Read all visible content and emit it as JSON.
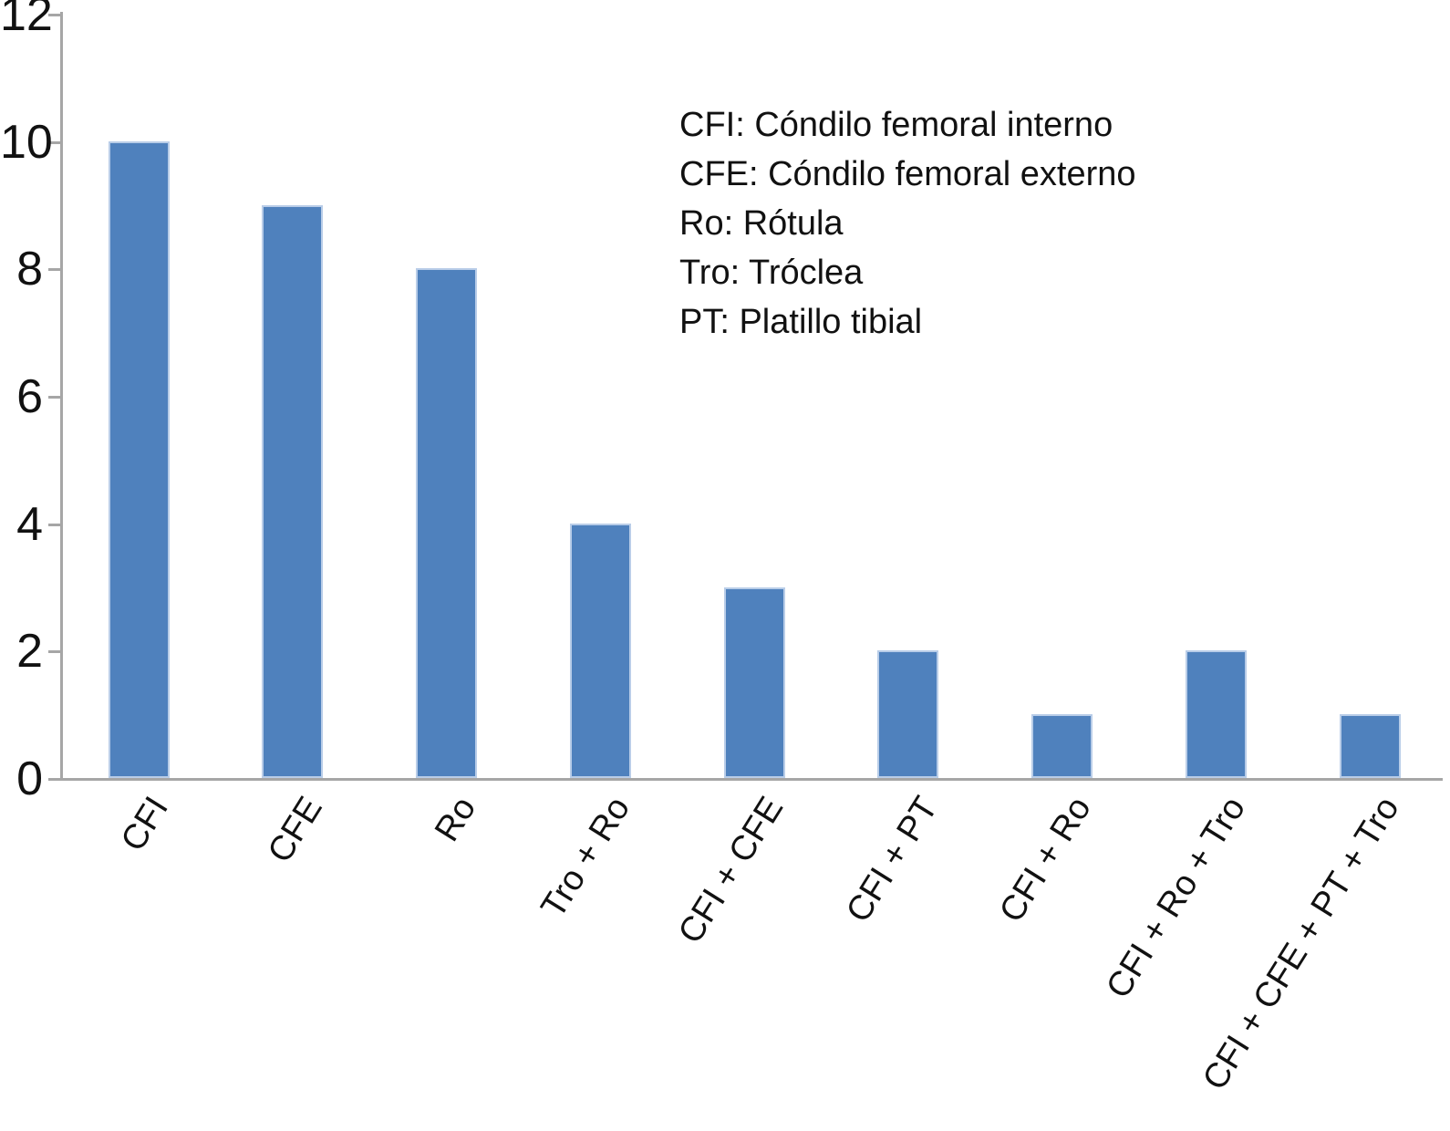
{
  "figure": {
    "background_color": "#ffffff",
    "text_color": "#111111"
  },
  "chart_data": {
    "type": "bar",
    "title": "",
    "xlabel": "",
    "ylabel": "",
    "categories": [
      "CFI",
      "CFE",
      "Ro",
      "Tro + Ro",
      "CFI + CFE",
      "CFI + PT",
      "CFI + Ro",
      "CFI + Ro + Tro",
      "CFI + CFE + PT + Tro"
    ],
    "values": [
      10,
      9,
      8,
      4,
      3,
      2,
      1,
      2,
      1
    ],
    "ylim": [
      0,
      12
    ],
    "yticks": [
      0,
      2,
      4,
      6,
      8,
      10,
      12
    ],
    "grid": false,
    "x_tick_rotation_deg": -58,
    "bar_color": "#4f81bd",
    "bar_border_color": "#b9cde8",
    "axis_color": "#a6a6a6",
    "legend_position": "upper-right-inside",
    "annotations": [
      "CFI: Cóndilo femoral interno",
      "CFE: Cóndilo femoral externo",
      "Ro: Rótula",
      "Tro: Tróclea",
      "PT: Platillo tibial"
    ]
  }
}
